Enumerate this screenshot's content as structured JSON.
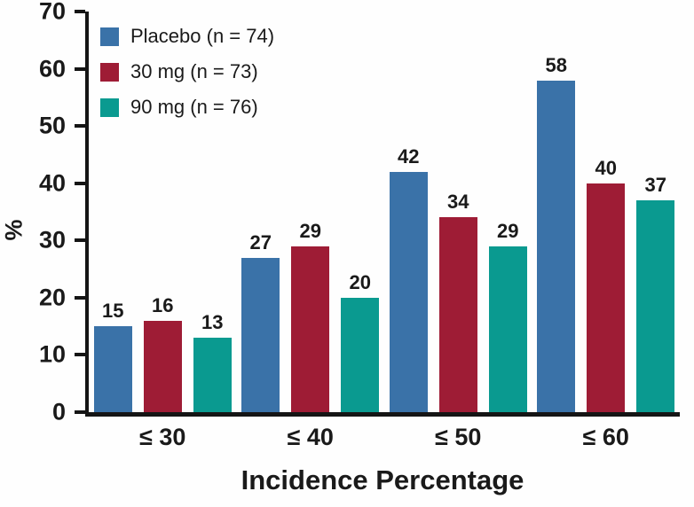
{
  "chart_data": {
    "type": "bar",
    "title": "",
    "xlabel": "Incidence Percentage",
    "ylabel": "%",
    "ylim": [
      0,
      70
    ],
    "yticks": [
      0,
      10,
      20,
      30,
      40,
      50,
      60,
      70
    ],
    "grid": false,
    "legend_position": "top-left-inside",
    "bar_value_labels": true,
    "categories": [
      "≤ 30",
      "≤ 40",
      "≤ 50",
      "≤ 60"
    ],
    "series": [
      {
        "name": "Placebo (n = 74)",
        "color": "#3a72a8",
        "values": [
          15,
          27,
          42,
          58
        ]
      },
      {
        "name": "30 mg (n = 73)",
        "color": "#9e1c35",
        "values": [
          16,
          29,
          34,
          40
        ]
      },
      {
        "name": "90 mg (n = 76)",
        "color": "#0a9a90",
        "values": [
          13,
          20,
          29,
          37
        ]
      }
    ],
    "colors": {
      "axis": "#151515",
      "text": "#1a1a1a",
      "background": "#fefefe"
    }
  }
}
